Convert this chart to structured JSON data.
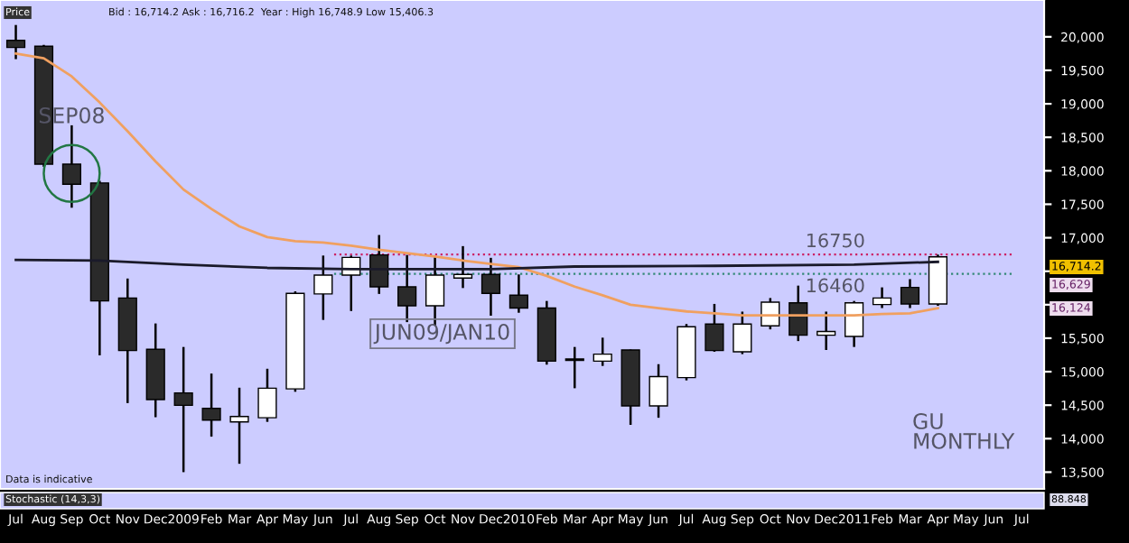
{
  "chart_data": {
    "type": "candlestick",
    "x": [
      "2008-07",
      "2008-08",
      "2008-09",
      "2008-10",
      "2008-11",
      "2008-12",
      "2009-01",
      "2009-02",
      "2009-03",
      "2009-04",
      "2009-05",
      "2009-06",
      "2009-07",
      "2009-08",
      "2009-09",
      "2009-10",
      "2009-11",
      "2009-12",
      "2010-01",
      "2010-02",
      "2010-03",
      "2010-04",
      "2010-05",
      "2010-06",
      "2010-07",
      "2010-08",
      "2010-09",
      "2010-10",
      "2010-11",
      "2010-12",
      "2011-01",
      "2011-02",
      "2011-03",
      "2011-04"
    ],
    "ohlc": [
      [
        19947,
        20177,
        19667,
        19841
      ],
      [
        19860,
        19880,
        18060,
        18098
      ],
      [
        18098,
        18679,
        17448,
        17799
      ],
      [
        17818,
        17850,
        15244,
        16056
      ],
      [
        16100,
        16391,
        14531,
        15316
      ],
      [
        15334,
        15720,
        14320,
        14584
      ],
      [
        14682,
        15369,
        13500,
        14497
      ],
      [
        14452,
        14972,
        14030,
        14277
      ],
      [
        14250,
        14761,
        13625,
        14330
      ],
      [
        14312,
        15044,
        14251,
        14753
      ],
      [
        14743,
        16200,
        14700,
        16170
      ],
      [
        16161,
        16734,
        15773,
        16443
      ],
      [
        16443,
        16734,
        15906,
        16707
      ],
      [
        16743,
        17041,
        16161,
        16267
      ],
      [
        16267,
        16743,
        15740,
        15984
      ],
      [
        15984,
        16707,
        15686,
        16443
      ],
      [
        16399,
        16875,
        16249,
        16452
      ],
      [
        16452,
        16700,
        15836,
        16170
      ],
      [
        16143,
        16452,
        15880,
        15950
      ],
      [
        15950,
        16056,
        15105,
        15157
      ],
      [
        15170,
        15369,
        14753,
        15190
      ],
      [
        15157,
        15508,
        15086,
        15262
      ],
      [
        15324,
        15330,
        14206,
        14489
      ],
      [
        14489,
        15112,
        14312,
        14927
      ],
      [
        14912,
        15712,
        14870,
        15671
      ],
      [
        15712,
        16012,
        15298,
        15316
      ],
      [
        15298,
        15897,
        15262,
        15712
      ],
      [
        15685,
        16100,
        15632,
        16038
      ],
      [
        16028,
        16285,
        15457,
        15545
      ],
      [
        15545,
        15897,
        15324,
        15600
      ],
      [
        15527,
        16056,
        15369,
        16028
      ],
      [
        16003,
        16259,
        15950,
        16100
      ],
      [
        16259,
        16382,
        15950,
        16012
      ],
      [
        16012,
        16748,
        15984,
        16714
      ]
    ],
    "series": [
      {
        "type": "line",
        "color": "#f0a060",
        "x": [
          "2008-07",
          "2008-08",
          "2008-09",
          "2008-10",
          "2008-11",
          "2008-12",
          "2009-01",
          "2009-02",
          "2009-03",
          "2009-04",
          "2009-05",
          "2009-06",
          "2009-07",
          "2009-08",
          "2009-09",
          "2009-10",
          "2009-11",
          "2009-12",
          "2010-01",
          "2010-02",
          "2010-03",
          "2010-04",
          "2010-05",
          "2010-06",
          "2010-07",
          "2010-08",
          "2010-09",
          "2010-10",
          "2010-11",
          "2010-12",
          "2011-01",
          "2011-02",
          "2011-03",
          "2011-04"
        ],
        "values": [
          19750,
          19680,
          19410,
          19020,
          18590,
          18140,
          17720,
          17430,
          17170,
          17010,
          16950,
          16930,
          16880,
          16820,
          16770,
          16720,
          16660,
          16610,
          16560,
          16430,
          16270,
          16140,
          16000,
          15950,
          15900,
          15870,
          15840,
          15840,
          15840,
          15840,
          15840,
          15860,
          15870,
          15950
        ]
      },
      {
        "type": "line",
        "color": "#1a1a2a",
        "x": [
          "2008-07",
          "2008-10",
          "2009-01",
          "2009-04",
          "2009-07",
          "2009-12",
          "2010-03",
          "2010-08",
          "2011-01",
          "2011-04"
        ],
        "values": [
          16670,
          16660,
          16600,
          16550,
          16530,
          16530,
          16570,
          16580,
          16600,
          16640
        ]
      }
    ],
    "xlim": [
      "2008-06-14",
      "2011-07-25"
    ],
    "xticks": [
      {
        "value": "2008-07",
        "label": "Jul"
      },
      {
        "value": "2008-08",
        "label": "Aug"
      },
      {
        "value": "2008-09",
        "label": "Sep"
      },
      {
        "value": "2008-10",
        "label": "Oct"
      },
      {
        "value": "2008-11",
        "label": "Nov"
      },
      {
        "value": "2008-12",
        "label": "Dec"
      },
      {
        "value": "2009-01",
        "label": "2009"
      },
      {
        "value": "2009-02",
        "label": "Feb"
      },
      {
        "value": "2009-03",
        "label": "Mar"
      },
      {
        "value": "2009-04",
        "label": "Apr"
      },
      {
        "value": "2009-05",
        "label": "May"
      },
      {
        "value": "2009-06",
        "label": "Jun"
      },
      {
        "value": "2009-07",
        "label": "Jul"
      },
      {
        "value": "2009-08",
        "label": "Aug"
      },
      {
        "value": "2009-09",
        "label": "Sep"
      },
      {
        "value": "2009-10",
        "label": "Oct"
      },
      {
        "value": "2009-11",
        "label": "Nov"
      },
      {
        "value": "2009-12",
        "label": "Dec"
      },
      {
        "value": "2010-01",
        "label": "2010"
      },
      {
        "value": "2010-02",
        "label": "Feb"
      },
      {
        "value": "2010-03",
        "label": "Mar"
      },
      {
        "value": "2010-04",
        "label": "Apr"
      },
      {
        "value": "2010-05",
        "label": "May"
      },
      {
        "value": "2010-06",
        "label": "Jun"
      },
      {
        "value": "2010-07",
        "label": "Jul"
      },
      {
        "value": "2010-08",
        "label": "Aug"
      },
      {
        "value": "2010-09",
        "label": "Sep"
      },
      {
        "value": "2010-10",
        "label": "Oct"
      },
      {
        "value": "2010-11",
        "label": "Nov"
      },
      {
        "value": "2010-12",
        "label": "Dec"
      },
      {
        "value": "2011-01",
        "label": "2011"
      },
      {
        "value": "2011-02",
        "label": "Feb"
      },
      {
        "value": "2011-03",
        "label": "Mar"
      },
      {
        "value": "2011-04",
        "label": "Apr"
      },
      {
        "value": "2011-05",
        "label": "May"
      },
      {
        "value": "2011-06",
        "label": "Jun"
      },
      {
        "value": "2011-07",
        "label": "Jul"
      }
    ],
    "ylim": [
      13250,
      20550
    ],
    "yticks": [
      {
        "value": 13500,
        "label": "13,500"
      },
      {
        "value": 14000,
        "label": "14,000"
      },
      {
        "value": 14500,
        "label": "14,500"
      },
      {
        "value": 15000,
        "label": "15,000"
      },
      {
        "value": 15500,
        "label": "15,500"
      },
      {
        "value": 16000,
        "label": null
      },
      {
        "value": 16500,
        "label": null
      },
      {
        "value": 17000,
        "label": "17,000"
      },
      {
        "value": 17500,
        "label": "17,500"
      },
      {
        "value": 18000,
        "label": "18,000"
      },
      {
        "value": 18500,
        "label": "18,500"
      },
      {
        "value": 19000,
        "label": "19,000"
      },
      {
        "value": 19500,
        "label": "19,500"
      },
      {
        "value": 20000,
        "label": "20,000"
      }
    ],
    "ref_lines": [
      {
        "axis": "y",
        "value": 16750,
        "label": "16750",
        "color": "#cc2266",
        "line_style": "dotted"
      },
      {
        "axis": "y",
        "value": 16460,
        "label": "16460",
        "color": "#338877",
        "line_style": "dotted"
      }
    ],
    "annotations": [
      {
        "text": "SEP08",
        "x": "2008-09",
        "y": 18800
      },
      "JUN09/JAN10",
      "GU\nMONTHLY",
      "Price",
      "Bid : 16,714.2 Ask : 16,716.2  Year : High 16,748.9 Low 15,406.3",
      "Data is indicative",
      "Stochastic (14,3,3)",
      "88.848",
      "16,714.2",
      "16,629",
      "16,124"
    ],
    "grid": false,
    "legend": false
  }
}
